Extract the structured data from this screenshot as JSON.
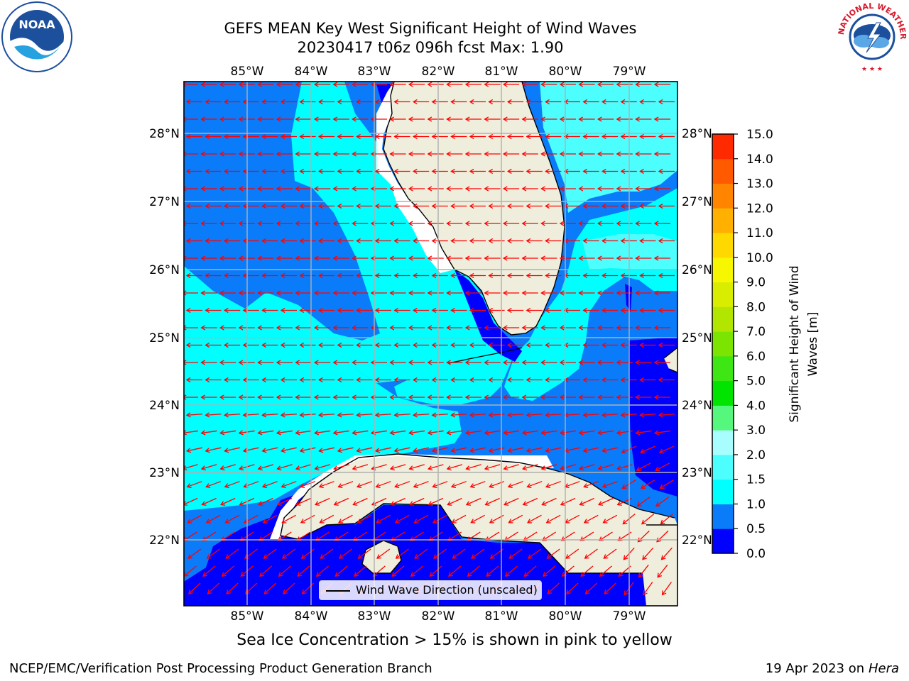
{
  "header": {
    "title_line1": "GEFS MEAN Key West Significant Height of Wind Waves",
    "title_line2": "20230417 t06z 096h fcst   Max: 1.90"
  },
  "logos": {
    "left": {
      "icon": "noaa-logo",
      "text": "NOAA"
    },
    "right": {
      "icon": "nws-logo",
      "text": "NATIONAL WEATHER SERVICE"
    }
  },
  "map": {
    "lon_labels": [
      "85°W",
      "84°W",
      "83°W",
      "82°W",
      "81°W",
      "80°W",
      "79°W"
    ],
    "lat_labels": [
      "28°N",
      "27°N",
      "26°N",
      "25°N",
      "24°N",
      "23°N",
      "22°N"
    ],
    "legend_label": "Wind Wave Direction (unscaled)",
    "colors": {
      "land": "#efeedc",
      "band_0_0p5": "#0000ff",
      "band_0p5_1": "#0a7cfa",
      "band_1_1p5": "#00ffff",
      "band_1p5_2": "#4cfefe",
      "arrow": "#ff0000",
      "grid": "#b0b0b0"
    }
  },
  "colorbar": {
    "label": "Significant Height of Wind Waves [m]",
    "ticks": [
      "0.0",
      "0.5",
      "1.0",
      "1.5",
      "2.0",
      "3.0",
      "4.0",
      "5.0",
      "6.0",
      "7.0",
      "8.0",
      "9.0",
      "10.0",
      "11.0",
      "12.0",
      "13.0",
      "14.0",
      "15.0"
    ],
    "colors": [
      "#0000ff",
      "#0a7cfa",
      "#00ffff",
      "#4cfefe",
      "#a8fefe",
      "#55f77c",
      "#00e400",
      "#3ee614",
      "#7be400",
      "#b2e600",
      "#d8ed00",
      "#f6f700",
      "#ffd800",
      "#ffb000",
      "#ff8400",
      "#ff5a00",
      "#ff2a00",
      "#ff0000"
    ]
  },
  "footer": {
    "note": "Sea Ice Concentration > 15% is shown in pink to yellow",
    "left": "NCEP/EMC/Verification Post Processing Product Generation Branch",
    "right_date": "19 Apr 2023 on ",
    "right_machine": "Hera"
  }
}
